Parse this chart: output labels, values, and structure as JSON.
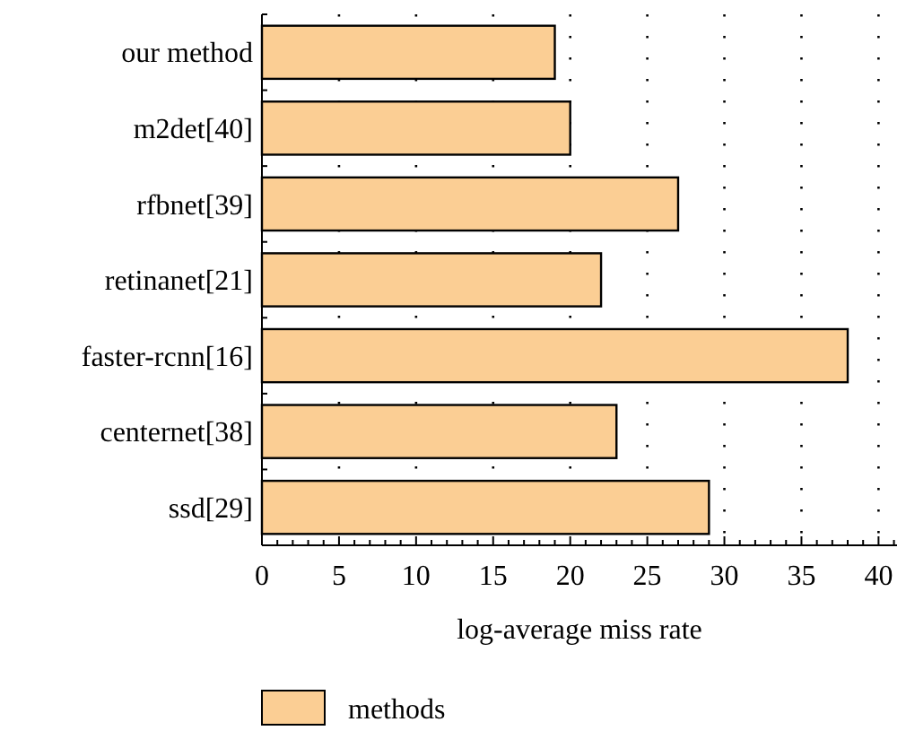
{
  "chart_data": {
    "type": "bar",
    "orientation": "horizontal",
    "xlabel": "log-average miss rate",
    "categories": [
      "our method",
      "m2det[40]",
      "rfbnet[39]",
      "retinanet[21]",
      "faster-rcnn[16]",
      "centernet[38]",
      "ssd[29]"
    ],
    "series": [
      {
        "name": "methods",
        "color": "#fbce94",
        "values": [
          19,
          20,
          27,
          22,
          38,
          23,
          29
        ]
      }
    ],
    "xlim": [
      0,
      41.2
    ],
    "xticks": [
      0,
      {
        "value": 1,
        "label": null
      },
      {
        "value": 2,
        "label": null
      },
      {
        "value": 3,
        "label": null
      },
      {
        "value": 4,
        "label": null
      },
      5,
      {
        "value": 6,
        "label": null
      },
      {
        "value": 7,
        "label": null
      },
      {
        "value": 8,
        "label": null
      },
      {
        "value": 9,
        "label": null
      },
      10,
      {
        "value": 11,
        "label": null
      },
      {
        "value": 12,
        "label": null
      },
      {
        "value": 13,
        "label": null
      },
      {
        "value": 14,
        "label": null
      },
      15,
      {
        "value": 16,
        "label": null
      },
      {
        "value": 17,
        "label": null
      },
      {
        "value": 18,
        "label": null
      },
      {
        "value": 19,
        "label": null
      },
      20,
      {
        "value": 21,
        "label": null
      },
      {
        "value": 22,
        "label": null
      },
      {
        "value": 23,
        "label": null
      },
      {
        "value": 24,
        "label": null
      },
      25,
      {
        "value": 26,
        "label": null
      },
      {
        "value": 27,
        "label": null
      },
      {
        "value": 28,
        "label": null
      },
      {
        "value": 29,
        "label": null
      },
      30,
      {
        "value": 31,
        "label": null
      },
      {
        "value": 32,
        "label": null
      },
      {
        "value": 33,
        "label": null
      },
      {
        "value": 34,
        "label": null
      },
      35,
      {
        "value": 36,
        "label": null
      },
      {
        "value": 37,
        "label": null
      },
      {
        "value": 38,
        "label": null
      },
      {
        "value": 39,
        "label": null
      },
      40,
      {
        "value": 41,
        "label": null
      }
    ],
    "grid": "x",
    "legend": "bottom left"
  }
}
